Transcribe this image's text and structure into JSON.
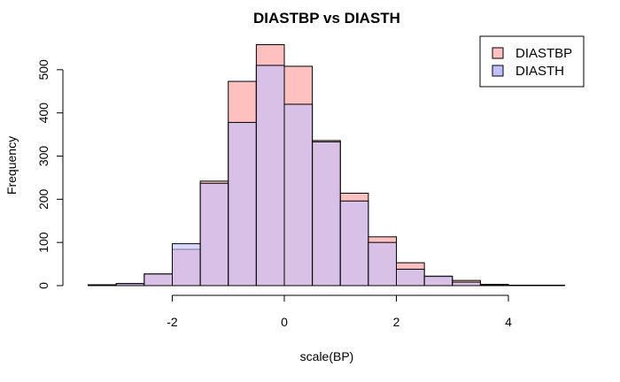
{
  "chart_data": {
    "type": "bar",
    "title": "DIASTBP vs DIASTH",
    "xlabel": "scale(BP)",
    "ylabel": "Frequency",
    "xlim": [
      -3.5,
      5.0
    ],
    "ylim": [
      0,
      560
    ],
    "x_ticks": [
      -2,
      0,
      2,
      4
    ],
    "y_ticks": [
      0,
      100,
      200,
      300,
      400,
      500
    ],
    "bin_edges": [
      -3.5,
      -3.0,
      -2.5,
      -2.0,
      -1.5,
      -1.0,
      -0.5,
      0.0,
      0.5,
      1.0,
      1.5,
      2.0,
      2.5,
      3.0,
      3.5,
      4.0,
      4.5,
      5.0
    ],
    "series": [
      {
        "name": "DIASTBP",
        "color": "#FFC0C0",
        "values": [
          2,
          4,
          27,
          84,
          242,
          473,
          558,
          508,
          336,
          214,
          113,
          53,
          21,
          12,
          3,
          1,
          1
        ]
      },
      {
        "name": "DIASTH",
        "color": "#C0C0FF",
        "values": [
          2,
          5,
          27,
          97,
          237,
          378,
          510,
          420,
          333,
          196,
          100,
          38,
          22,
          8,
          2,
          1,
          1
        ]
      }
    ],
    "overlap_color": "#C090D0",
    "legend_position": "top-right"
  }
}
